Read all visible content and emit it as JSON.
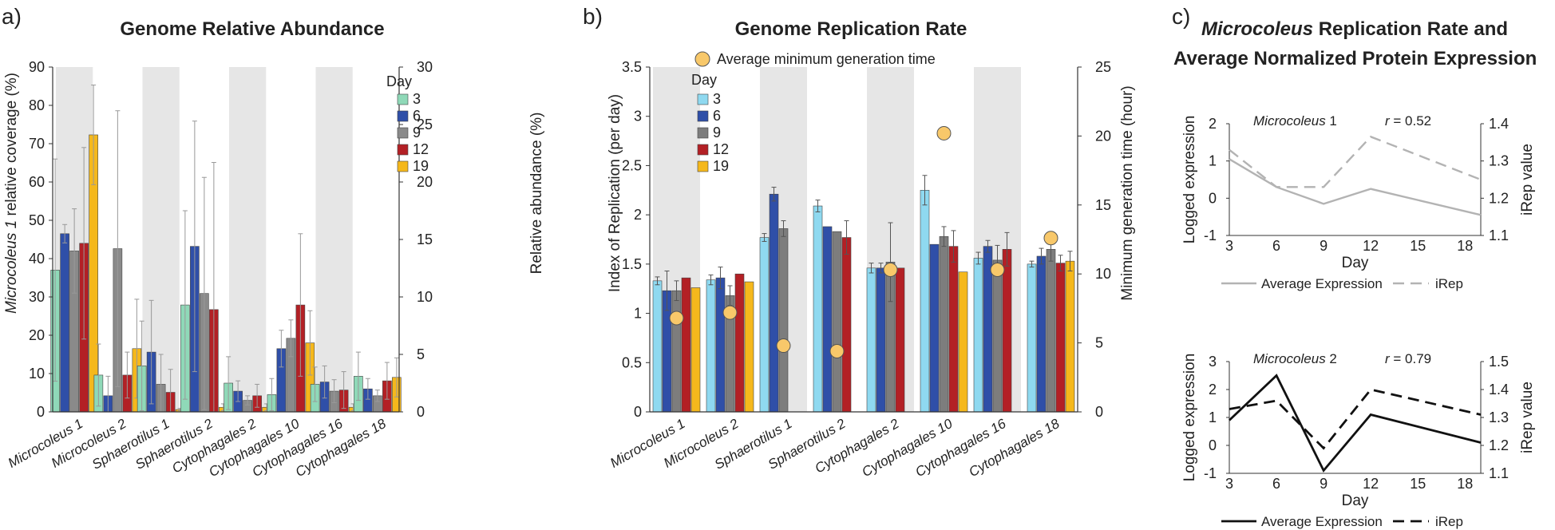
{
  "colors": {
    "day3": "#8fd9b8",
    "day6": "#2f4fa8",
    "day9": "#8a8a8a",
    "day12": "#b32025",
    "day19": "#f5b81c",
    "b_day3": "#8fd9f0",
    "b_day6": "#2f4fa8",
    "b_day9": "#7d7d7d",
    "b_day12": "#b32025",
    "b_day19": "#f5b81c",
    "dot": "#f8c86a",
    "band": "#e6e6e6",
    "c1_expr": "#b3b3b3",
    "c1_irep": "#b3b3b3",
    "c2_expr": "#111111",
    "c2_irep": "#111111"
  },
  "chart_data": [
    {
      "panel_label": "a)",
      "type": "bar",
      "title": "Genome Relative Abundance",
      "ylabel": "Microcoleus 1 relative coverage (%)",
      "ylabel_italic": "Microcoleus 1",
      "ylabel_rest": " relative coverage (%)",
      "y2label": "Relative abundance (%)",
      "ylim": [
        0,
        90
      ],
      "y_ticks": [
        "0",
        "10",
        "20",
        "30",
        "40",
        "50",
        "60",
        "70",
        "80",
        "90"
      ],
      "y2lim": [
        0,
        30
      ],
      "y2_ticks": [
        "0",
        "5",
        "10",
        "15",
        "20",
        "25",
        "30"
      ],
      "legend_title": "Day",
      "legend_position": "top-right",
      "categories": [
        "Microcoleus 1",
        "Microcoleus 2",
        "Sphaerotilus 1",
        "Sphaerotilus 2",
        "Cytophagales 2",
        "Cytophagales 10",
        "Cytophagales 16",
        "Cytophagales 18"
      ],
      "note": "Microcoleus 1 on left axis; other genomes on right axis",
      "series": [
        {
          "name": "3",
          "values": [
            37,
            3.2,
            4.0,
            9.3,
            2.5,
            1.5,
            2.4,
            3.1
          ],
          "errors": [
            29,
            2.7,
            3.9,
            8.2,
            2.3,
            1.4,
            1.5,
            2.1
          ]
        },
        {
          "name": "6",
          "values": [
            46.5,
            1.4,
            5.2,
            14.4,
            1.8,
            5.5,
            2.6,
            2.0
          ],
          "errors": [
            2.4,
            1.7,
            4.5,
            10.9,
            0.9,
            1.6,
            1.4,
            0.9
          ]
        },
        {
          "name": "9",
          "values": [
            42,
            14.2,
            2.4,
            10.3,
            1.0,
            6.4,
            1.8,
            1.4
          ],
          "errors": [
            11,
            12.0,
            2.6,
            10.1,
            0.4,
            1.6,
            1.0,
            0.5
          ]
        },
        {
          "name": "12",
          "values": [
            44,
            3.2,
            1.7,
            8.9,
            1.4,
            9.3,
            1.9,
            2.7
          ],
          "errors": [
            25,
            2.0,
            2.0,
            12.8,
            1.0,
            6.2,
            1.6,
            1.6
          ]
        },
        {
          "name": "19",
          "values": [
            72.3,
            5.5,
            0.2,
            0.4,
            0.4,
            6.0,
            0.4,
            3.0
          ],
          "errors": [
            13,
            4.3,
            0.1,
            0.3,
            0.3,
            2.8,
            0.3,
            1.7
          ]
        }
      ]
    },
    {
      "panel_label": "b)",
      "type": "bar",
      "title": "Genome Replication Rate",
      "ylabel": "Index of Replication (per day)",
      "y2label": "Minimum generation time (hour)",
      "ylim": [
        0,
        3.5
      ],
      "y_ticks": [
        "0",
        "0.5",
        "1",
        "1.5",
        "2",
        "2.5",
        "3",
        "3.5"
      ],
      "y2lim": [
        0,
        25
      ],
      "y2_ticks": [
        "0",
        "5",
        "10",
        "15",
        "20",
        "25"
      ],
      "legend_title": "Day",
      "dot_legend": "Average minimum generation time",
      "categories": [
        "Microcoleus 1",
        "Microcoleus 2",
        "Sphaerotilus 1",
        "Sphaerotilus 2",
        "Cytophagales 2",
        "Cytophagales 10",
        "Cytophagales 16",
        "Cytophagales 18"
      ],
      "series": [
        {
          "name": "3",
          "values": [
            1.33,
            1.34,
            1.77,
            2.09,
            1.46,
            2.25,
            1.56,
            1.5
          ],
          "errors": [
            0.04,
            0.05,
            0.04,
            0.06,
            0.05,
            0.15,
            0.06,
            0.03
          ]
        },
        {
          "name": "6",
          "values": [
            1.23,
            1.36,
            2.21,
            1.88,
            1.46,
            1.7,
            1.68,
            1.58
          ],
          "errors": [
            0.2,
            0.11,
            0.07,
            0.0,
            0.05,
            0.0,
            0.06,
            0.08
          ]
        },
        {
          "name": "9",
          "values": [
            1.23,
            1.18,
            1.86,
            1.83,
            1.52,
            1.78,
            1.54,
            1.65
          ],
          "errors": [
            0.1,
            0.1,
            0.08,
            0.0,
            0.4,
            0.1,
            0.15,
            0.12
          ]
        },
        {
          "name": "12",
          "values": [
            1.36,
            1.4,
            0,
            1.77,
            1.46,
            1.68,
            1.65,
            1.51
          ],
          "errors": [
            0.0,
            0.0,
            0,
            0.17,
            0.0,
            0.16,
            0.17,
            0.08
          ]
        },
        {
          "name": "19",
          "values": [
            1.26,
            1.32,
            0,
            0,
            0,
            1.42,
            0,
            1.53
          ],
          "errors": [
            0.0,
            0.0,
            0,
            0,
            0,
            0.0,
            0,
            0.1
          ]
        }
      ],
      "generation_time": [
        6.8,
        7.2,
        4.8,
        4.4,
        10.3,
        20.2,
        10.3,
        12.6
      ]
    },
    {
      "panel_label": "c)",
      "type": "line",
      "title_italic": "Microcoleus",
      "title_line1_rest": " Replication Rate and",
      "title_line2": "Average Normalized Protein Expression",
      "plots": [
        {
          "name": "Microcoleus 1",
          "name_italic": "Microcoleus",
          "name_suffix": " 1",
          "r_label": "r",
          "r_value": " = 0.52",
          "ylabel": "Logged expression",
          "y2label": "iRep value",
          "xlabel": "Day",
          "ylim": [
            -1,
            2
          ],
          "y_ticks": [
            "-1",
            "0",
            "1",
            "2"
          ],
          "y2lim": [
            1.1,
            1.4
          ],
          "y2_ticks": [
            "1.1",
            "1.2",
            "1.3",
            "1.4"
          ],
          "x_ticks": [
            "3",
            "6",
            "9",
            "12",
            "15",
            "18"
          ],
          "xlim": [
            3,
            19
          ],
          "series": [
            {
              "name": "Average Expression",
              "style": "solid",
              "axis": "left",
              "x": [
                3,
                6,
                9,
                12,
                19
              ],
              "y": [
                1.05,
                0.3,
                -0.15,
                0.25,
                -0.45
              ]
            },
            {
              "name": "iRep",
              "style": "dashed",
              "axis": "right",
              "x": [
                3,
                6,
                9,
                12,
                19
              ],
              "y": [
                1.33,
                1.23,
                1.23,
                1.365,
                1.25
              ]
            }
          ]
        },
        {
          "name": "Microcoleus 2",
          "name_italic": "Microcoleus",
          "name_suffix": " 2",
          "r_label": "r",
          "r_value": " = 0.79",
          "ylabel": "Logged expression",
          "y2label": "iRep value",
          "xlabel": "Day",
          "ylim": [
            -1,
            3
          ],
          "y_ticks": [
            "-1",
            "0",
            "1",
            "2",
            "3"
          ],
          "y2lim": [
            1.1,
            1.5
          ],
          "y2_ticks": [
            "1.1",
            "1.2",
            "1.3",
            "1.4",
            "1.5"
          ],
          "x_ticks": [
            "3",
            "6",
            "9",
            "12",
            "15",
            "18"
          ],
          "xlim": [
            3,
            19
          ],
          "series": [
            {
              "name": "Average Expression",
              "style": "solid",
              "axis": "left",
              "x": [
                3,
                6,
                9,
                12,
                19
              ],
              "y": [
                0.9,
                2.5,
                -0.9,
                1.1,
                0.1
              ]
            },
            {
              "name": "iRep",
              "style": "dashed",
              "axis": "right",
              "x": [
                3,
                6,
                9,
                12,
                19
              ],
              "y": [
                1.33,
                1.36,
                1.19,
                1.4,
                1.31
              ]
            }
          ]
        }
      ]
    }
  ]
}
